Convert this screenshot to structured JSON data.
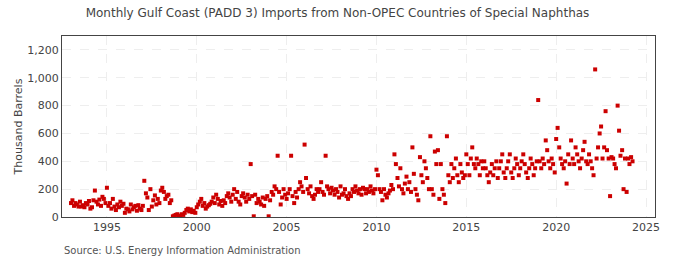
{
  "chart_data": {
    "type": "scatter",
    "title": "Monthly Gulf Coast (PADD 3) Imports from Non-OPEC Countries of Special Naphthas",
    "ylabel": "Thousand Barrels",
    "annotations": [
      "Source: U.S. Energy Information Administration"
    ],
    "color": "#cc0000",
    "marker": "square",
    "grid": true,
    "xlim": [
      1992.5,
      2025.5
    ],
    "xticks": [
      1995,
      2000,
      2005,
      2010,
      2015,
      2020,
      2025
    ],
    "ylim": [
      0,
      1300
    ],
    "yticks": [
      0,
      200,
      400,
      600,
      800,
      {
        "value": 1000,
        "label": "1,000"
      },
      {
        "value": 1200,
        "label": "1,200"
      }
    ],
    "x": [
      1993.0,
      1993.08,
      1993.17,
      1993.25,
      1993.33,
      1993.42,
      1993.5,
      1993.58,
      1993.67,
      1993.75,
      1993.83,
      1993.92,
      1994.0,
      1994.08,
      1994.17,
      1994.25,
      1994.33,
      1994.42,
      1994.5,
      1994.58,
      1994.67,
      1994.75,
      1994.83,
      1994.92,
      1995.0,
      1995.08,
      1995.17,
      1995.25,
      1995.33,
      1995.42,
      1995.5,
      1995.58,
      1995.67,
      1995.75,
      1995.83,
      1995.92,
      1996.0,
      1996.08,
      1996.17,
      1996.25,
      1996.33,
      1996.42,
      1996.5,
      1996.58,
      1996.67,
      1996.75,
      1996.83,
      1996.92,
      1997.0,
      1997.08,
      1997.17,
      1997.25,
      1997.33,
      1997.42,
      1997.5,
      1997.58,
      1997.67,
      1997.75,
      1997.83,
      1997.92,
      1998.0,
      1998.08,
      1998.17,
      1998.25,
      1998.33,
      1998.42,
      1998.5,
      1998.58,
      1998.67,
      1998.75,
      1998.83,
      1998.92,
      1999.0,
      1999.08,
      1999.17,
      1999.25,
      1999.33,
      1999.42,
      1999.5,
      1999.58,
      1999.67,
      1999.75,
      1999.83,
      1999.92,
      2000.0,
      2000.08,
      2000.17,
      2000.25,
      2000.33,
      2000.42,
      2000.5,
      2000.58,
      2000.67,
      2000.75,
      2000.83,
      2000.92,
      2001.0,
      2001.08,
      2001.17,
      2001.25,
      2001.33,
      2001.42,
      2001.5,
      2001.58,
      2001.67,
      2001.75,
      2001.83,
      2001.92,
      2002.0,
      2002.08,
      2002.17,
      2002.25,
      2002.33,
      2002.42,
      2002.5,
      2002.58,
      2002.67,
      2002.75,
      2002.83,
      2002.92,
      2003.0,
      2003.08,
      2003.17,
      2003.25,
      2003.33,
      2003.42,
      2003.5,
      2003.58,
      2003.67,
      2003.75,
      2003.83,
      2003.92,
      2004.0,
      2004.08,
      2004.17,
      2004.25,
      2004.33,
      2004.42,
      2004.5,
      2004.58,
      2004.67,
      2004.75,
      2004.83,
      2004.92,
      2005.0,
      2005.08,
      2005.17,
      2005.25,
      2005.33,
      2005.42,
      2005.5,
      2005.58,
      2005.67,
      2005.75,
      2005.83,
      2005.92,
      2006.0,
      2006.08,
      2006.17,
      2006.25,
      2006.33,
      2006.42,
      2006.5,
      2006.58,
      2006.67,
      2006.75,
      2006.83,
      2006.92,
      2007.0,
      2007.08,
      2007.17,
      2007.25,
      2007.33,
      2007.42,
      2007.5,
      2007.58,
      2007.67,
      2007.75,
      2007.83,
      2007.92,
      2008.0,
      2008.08,
      2008.17,
      2008.25,
      2008.33,
      2008.42,
      2008.5,
      2008.58,
      2008.67,
      2008.75,
      2008.83,
      2008.92,
      2009.0,
      2009.08,
      2009.17,
      2009.25,
      2009.33,
      2009.42,
      2009.5,
      2009.58,
      2009.67,
      2009.75,
      2009.83,
      2009.92,
      2010.0,
      2010.08,
      2010.17,
      2010.25,
      2010.33,
      2010.42,
      2010.5,
      2010.58,
      2010.67,
      2010.75,
      2010.83,
      2010.92,
      2011.0,
      2011.08,
      2011.17,
      2011.25,
      2011.33,
      2011.42,
      2011.5,
      2011.58,
      2011.67,
      2011.75,
      2011.83,
      2011.92,
      2012.0,
      2012.08,
      2012.17,
      2012.25,
      2012.33,
      2012.42,
      2012.5,
      2012.58,
      2012.67,
      2012.75,
      2012.83,
      2012.92,
      2013.0,
      2013.08,
      2013.17,
      2013.25,
      2013.33,
      2013.42,
      2013.5,
      2013.58,
      2013.67,
      2013.75,
      2013.83,
      2013.92,
      2014.0,
      2014.08,
      2014.17,
      2014.25,
      2014.33,
      2014.42,
      2014.5,
      2014.58,
      2014.67,
      2014.75,
      2014.83,
      2014.92,
      2015.0,
      2015.08,
      2015.17,
      2015.25,
      2015.33,
      2015.42,
      2015.5,
      2015.58,
      2015.67,
      2015.75,
      2015.83,
      2015.92,
      2016.0,
      2016.08,
      2016.17,
      2016.25,
      2016.33,
      2016.42,
      2016.5,
      2016.58,
      2016.67,
      2016.75,
      2016.83,
      2016.92,
      2017.0,
      2017.08,
      2017.17,
      2017.25,
      2017.33,
      2017.42,
      2017.5,
      2017.58,
      2017.67,
      2017.75,
      2017.83,
      2017.92,
      2018.0,
      2018.08,
      2018.17,
      2018.25,
      2018.33,
      2018.42,
      2018.5,
      2018.58,
      2018.67,
      2018.75,
      2018.83,
      2018.92,
      2019.0,
      2019.08,
      2019.17,
      2019.25,
      2019.33,
      2019.42,
      2019.5,
      2019.58,
      2019.67,
      2019.75,
      2019.83,
      2019.92,
      2020.0,
      2020.08,
      2020.17,
      2020.25,
      2020.33,
      2020.42,
      2020.5,
      2020.58,
      2020.67,
      2020.75,
      2020.83,
      2020.92,
      2021.0,
      2021.08,
      2021.17,
      2021.25,
      2021.33,
      2021.42,
      2021.5,
      2021.58,
      2021.67,
      2021.75,
      2021.83,
      2021.92,
      2022.0,
      2022.08,
      2022.17,
      2022.25,
      2022.33,
      2022.42,
      2022.5,
      2022.58,
      2022.67,
      2022.75,
      2022.83,
      2022.92,
      2023.0,
      2023.08,
      2023.17,
      2023.25,
      2023.33,
      2023.42,
      2023.5,
      2023.58,
      2023.67,
      2023.75,
      2023.83,
      2023.92,
      2024.0,
      2024.08,
      2024.17,
      2024.25
    ],
    "values": [
      100,
      120,
      80,
      100,
      90,
      75,
      110,
      75,
      85,
      70,
      100,
      90,
      115,
      60,
      70,
      120,
      190,
      110,
      90,
      125,
      80,
      145,
      130,
      100,
      210,
      80,
      100,
      60,
      130,
      75,
      50,
      90,
      70,
      110,
      80,
      95,
      30,
      60,
      55,
      40,
      90,
      55,
      70,
      80,
      45,
      85,
      60,
      50,
      80,
      260,
      170,
      140,
      50,
      200,
      75,
      120,
      155,
      90,
      130,
      100,
      190,
      210,
      180,
      130,
      150,
      160,
      100,
      120,
      5,
      10,
      15,
      20,
      5,
      10,
      20,
      15,
      30,
      50,
      60,
      40,
      55,
      35,
      45,
      30,
      70,
      90,
      110,
      130,
      80,
      100,
      60,
      75,
      85,
      95,
      110,
      140,
      100,
      160,
      130,
      90,
      115,
      80,
      120,
      100,
      150,
      170,
      140,
      110,
      160,
      200,
      130,
      180,
      110,
      90,
      150,
      170,
      140,
      110,
      160,
      130,
      380,
      150,
      5,
      160,
      100,
      130,
      110,
      90,
      140,
      80,
      130,
      150,
      5,
      120,
      180,
      160,
      220,
      200,
      440,
      180,
      90,
      140,
      200,
      160,
      130,
      170,
      200,
      440,
      150,
      100,
      180,
      140,
      200,
      250,
      220,
      180,
      520,
      280,
      200,
      170,
      220,
      150,
      130,
      160,
      200,
      180,
      200,
      250,
      180,
      160,
      440,
      220,
      200,
      170,
      210,
      190,
      160,
      200,
      180,
      140,
      220,
      160,
      170,
      200,
      150,
      130,
      170,
      150,
      200,
      180,
      220,
      190,
      170,
      200,
      160,
      210,
      200,
      170,
      200,
      180,
      220,
      190,
      170,
      200,
      340,
      300,
      200,
      180,
      120,
      200,
      160,
      140,
      170,
      190,
      230,
      200,
      450,
      380,
      280,
      220,
      350,
      200,
      170,
      240,
      290,
      200,
      250,
      180,
      500,
      310,
      200,
      160,
      120,
      430,
      300,
      250,
      400,
      350,
      280,
      200,
      580,
      200,
      160,
      470,
      380,
      480,
      130,
      380,
      200,
      160,
      100,
      580,
      300,
      250,
      380,
      280,
      350,
      420,
      300,
      250,
      380,
      320,
      280,
      300,
      450,
      380,
      300,
      420,
      500,
      380,
      350,
      420,
      380,
      300,
      400,
      350,
      400,
      350,
      300,
      250,
      320,
      380,
      300,
      350,
      400,
      280,
      350,
      400,
      450,
      320,
      280,
      350,
      400,
      450,
      320,
      280,
      350,
      420,
      380,
      300,
      350,
      400,
      450,
      380,
      320,
      280,
      350,
      420,
      380,
      300,
      350,
      400,
      840,
      400,
      350,
      420,
      380,
      550,
      480,
      400,
      350,
      420,
      380,
      320,
      560,
      640,
      500,
      420,
      380,
      350,
      400,
      240,
      450,
      380,
      550,
      420,
      380,
      500,
      450,
      400,
      350,
      420,
      480,
      540,
      400,
      380,
      450,
      400,
      350,
      300,
      1060,
      420,
      500,
      600,
      650,
      420,
      500,
      760,
      480,
      420,
      150,
      430,
      420,
      380,
      350,
      800,
      620,
      440,
      480,
      200,
      420,
      180,
      420,
      380,
      430,
      400
    ]
  }
}
